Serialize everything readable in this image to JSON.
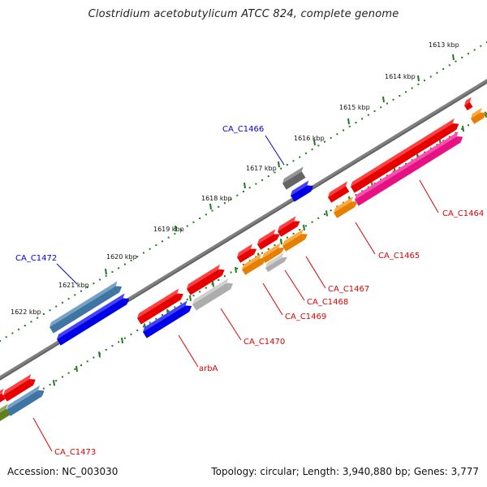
{
  "title": "Clostridium acetobutylicum ATCC 824, complete genome",
  "footer": {
    "accession": "Accession: NC_003030",
    "summary": "Topology: circular; Length: 3,940,880 bp; Genes: 3,777"
  },
  "colors": {
    "backbone": "#808080",
    "tick_green": "#1e7a1e",
    "label_red": "#e00000",
    "label_blue": "#0000dd",
    "red": "#ff0000",
    "blue": "#0000ff",
    "steelblue": "#4682b4",
    "gray": "#707070",
    "lightgray": "#c0c0c0",
    "orange": "#ff8c00",
    "magenta": "#ff1493",
    "olive": "#6b8e23"
  },
  "ticks": [
    {
      "label": "1613 kbp"
    },
    {
      "label": "1614 kbp"
    },
    {
      "label": "1615 kbp"
    },
    {
      "label": "1616 kbp"
    },
    {
      "label": "1617 kbp"
    },
    {
      "label": "1618 kbp"
    },
    {
      "label": "1619 kbp"
    },
    {
      "label": "1620 kbp"
    },
    {
      "label": "1621 kbp"
    },
    {
      "label": "1622 kbp"
    }
  ],
  "gene_labels": [
    {
      "text": "CA_C1466",
      "color": "blue"
    },
    {
      "text": "CA_C1472",
      "color": "blue"
    },
    {
      "text": "CA_C1464",
      "color": "red"
    },
    {
      "text": "CA_C1465",
      "color": "red"
    },
    {
      "text": "CA_C1467",
      "color": "red"
    },
    {
      "text": "CA_C1468",
      "color": "red"
    },
    {
      "text": "CA_C1469",
      "color": "red"
    },
    {
      "text": "CA_C1470",
      "color": "red"
    },
    {
      "text": "arbA",
      "color": "red"
    },
    {
      "text": "CA_C1473",
      "color": "red"
    }
  ]
}
